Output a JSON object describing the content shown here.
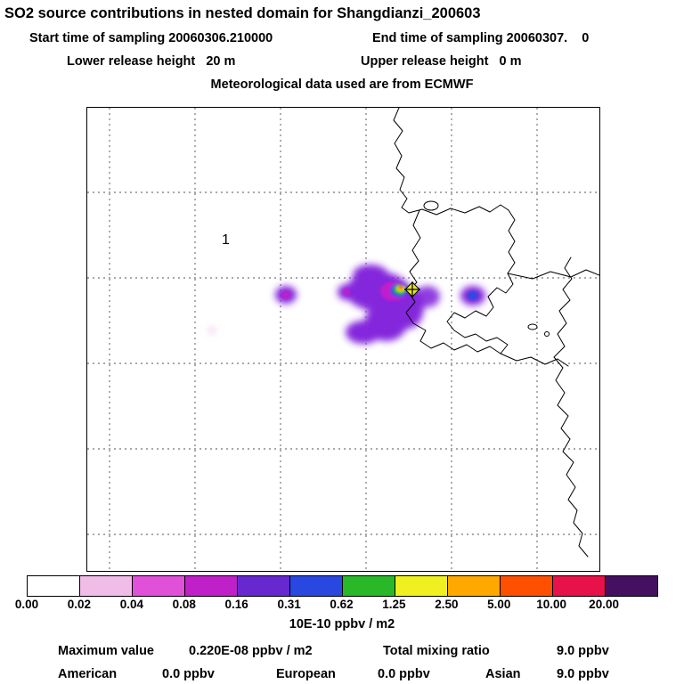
{
  "header": {
    "title": "SO2 source contributions in nested domain for Shangdianzi_200603",
    "start_time": "Start time of sampling 20060306.210000",
    "end_time": "End time of sampling 20060307.    0",
    "lower_release": "Lower release height   20 m",
    "upper_release": "Upper release height   0 m",
    "met_source": "Meteorological data used are from ECMWF"
  },
  "map": {
    "region_label": "1"
  },
  "chart_data": {
    "type": "heatmap",
    "title": "SO2 source contributions in nested domain for Shangdianzi_200603",
    "description": "Footprint map of SO2 source contributions over East Asia; concentration plume around source marker near Shangdianzi, dashed lat/lon grid, coastlines drawn in black.",
    "units_label": "10E-10 ppbv / m2",
    "colorbar": {
      "tick_labels": [
        "0.00",
        "0.02",
        "0.04",
        "0.08",
        "0.16",
        "0.31",
        "0.62",
        "1.25",
        "2.50",
        "5.00",
        "10.00",
        "20.00"
      ],
      "levels": [
        0,
        0.02,
        0.04,
        0.08,
        0.16,
        0.31,
        0.62,
        1.25,
        2.5,
        5,
        10,
        20
      ],
      "segment_colors": [
        "#ffffff",
        "#f0bce8",
        "#e050d8",
        "#c020c8",
        "#6828d0",
        "#2848e0",
        "#28b828",
        "#f0f020",
        "#ffa800",
        "#ff5000",
        "#e8124a",
        "#461060"
      ]
    },
    "stats": {
      "max_label": "Maximum value",
      "max_value": "0.220E-08 ppbv / m2",
      "total_label": "Total mixing ratio",
      "total_value": "9.0 ppbv",
      "regions": [
        {
          "name": "American",
          "value": "0.0 ppbv"
        },
        {
          "name": "European",
          "value": "0.0 ppbv"
        },
        {
          "name": "Asian",
          "value": "9.0 ppbv"
        }
      ]
    },
    "source_marker": {
      "symbol": "cross-on-diamond",
      "color": "#e8e820"
    }
  }
}
